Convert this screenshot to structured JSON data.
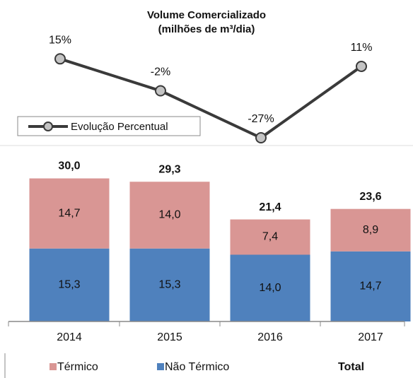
{
  "chart_data": [
    {
      "type": "line",
      "title": "Volume Comercializado",
      "subtitle": "(milhões de m³/dia)",
      "series": [
        {
          "name": "Evolução Percentual",
          "color": "#3a3a3a",
          "marker_color": "#c4c4c4",
          "values": [
            15,
            -2,
            -27,
            11
          ],
          "value_labels": [
            "15%",
            "-2%",
            "-27%",
            "11%"
          ]
        }
      ],
      "ylim": [
        -30,
        20
      ],
      "legend": "upper left"
    },
    {
      "type": "bar",
      "stacked": true,
      "categories": [
        "2014",
        "2015",
        "2016",
        "2017"
      ],
      "series": [
        {
          "name": "Térmico",
          "color": "#d99694",
          "values": [
            14.7,
            14.0,
            7.4,
            8.9
          ],
          "value_labels": [
            "14,7",
            "14,0",
            "7,4",
            "8,9"
          ]
        },
        {
          "name": "Não Térmico",
          "color": "#4f81bd",
          "values": [
            15.3,
            15.3,
            14.0,
            14.7
          ],
          "value_labels": [
            "15,3",
            "15,3",
            "14,0",
            "14,7"
          ]
        },
        {
          "name": "Total",
          "values": [
            30.0,
            29.3,
            21.4,
            23.6
          ],
          "value_labels": [
            "30,0",
            "29,3",
            "21,4",
            "23,6"
          ]
        }
      ],
      "ylim": [
        0,
        32
      ],
      "legend": "bottom"
    }
  ]
}
